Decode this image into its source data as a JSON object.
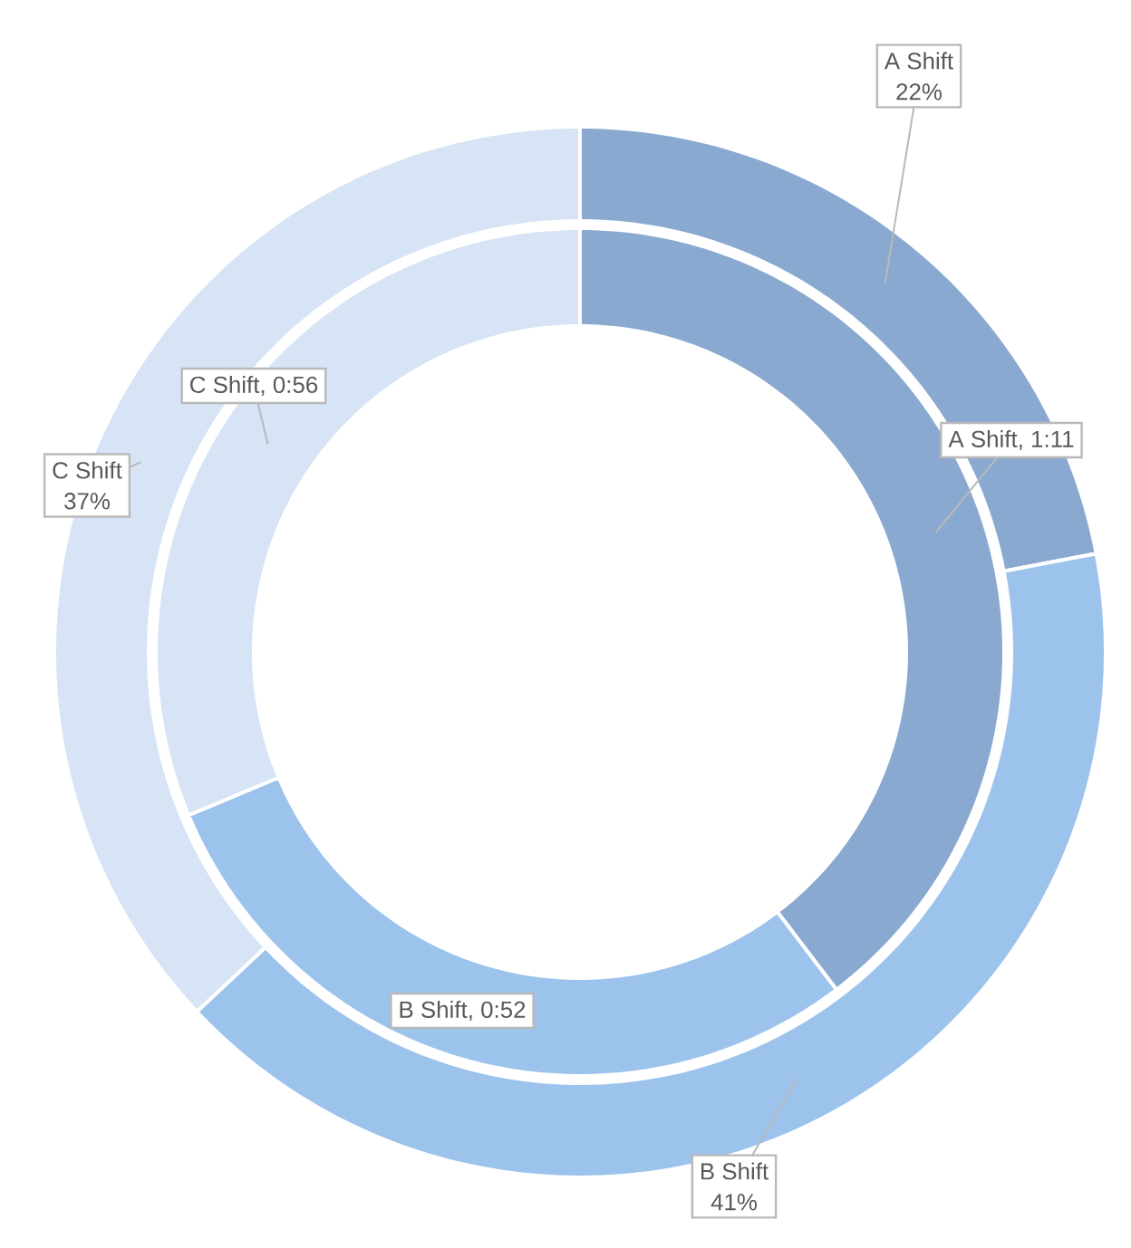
{
  "chart_data": {
    "type": "donut",
    "categories": [
      "A Shift",
      "B Shift",
      "C Shift"
    ],
    "series": [
      {
        "values": [
          22,
          41,
          37
        ],
        "colors": [
          "#8aa9d0",
          "#9cc3ec",
          "#d6e4f5"
        ],
        "value_labels": [
          "22%",
          "41%",
          "37%"
        ]
      },
      {
        "values": [
          71,
          52,
          56
        ],
        "colors": [
          "#8aa9d0",
          "#9cc3ec",
          "#d6e4f5"
        ],
        "value_labels": [
          "A Shift, 1:11",
          "B Shift, 0:52",
          "C Shift, 0:56"
        ]
      }
    ]
  }
}
